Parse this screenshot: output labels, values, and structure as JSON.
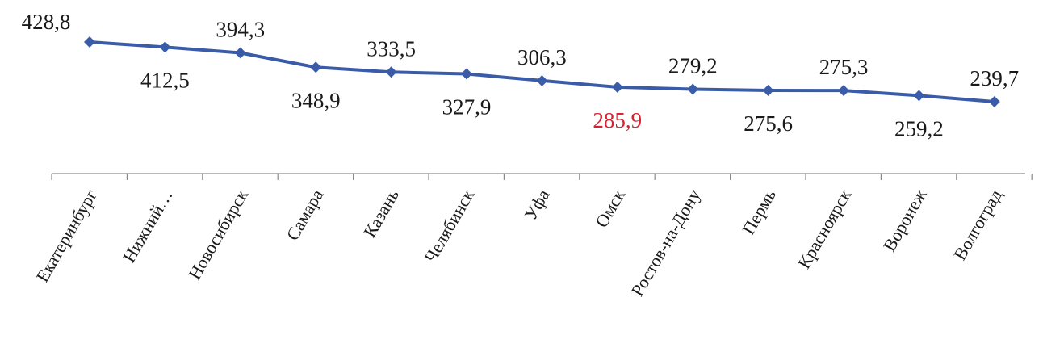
{
  "chart_data": {
    "type": "line",
    "categories": [
      "Екатеринбург",
      "Нижний…",
      "Новосибирск",
      "Самара",
      "Казань",
      "Челябинск",
      "Уфа",
      "Омск",
      "Ростов-на-Дону",
      "Пермь",
      "Красноярск",
      "Воронеж",
      "Волгоград"
    ],
    "values": [
      428.8,
      412.5,
      394.3,
      348.9,
      333.5,
      327.9,
      306.3,
      285.9,
      279.2,
      275.6,
      275.3,
      259.2,
      239.7
    ],
    "data_labels": [
      "428,8",
      "412,5",
      "394,3",
      "348,9",
      "333,5",
      "327,9",
      "306,3",
      "285,9",
      "279,2",
      "275,6",
      "275,3",
      "259,2",
      "239,7"
    ],
    "highlighted_index": 7,
    "title": "",
    "xlabel": "",
    "ylabel": "",
    "grid": false,
    "legend": "none",
    "colors": {
      "series": "#3a5ca8",
      "highlight_label": "#d8222f",
      "axis": "#8c8c8c",
      "text": "#1a1a1a"
    }
  }
}
